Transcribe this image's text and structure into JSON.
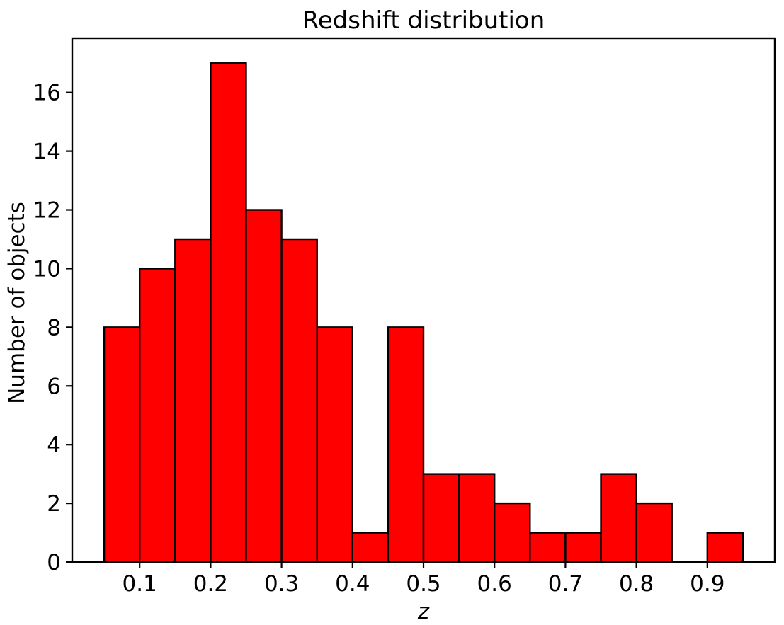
{
  "chart_data": {
    "type": "bar",
    "subtype": "histogram",
    "title": "Redshift distribution",
    "xlabel": "z",
    "ylabel": "Number of objects",
    "bin_start": 0.05,
    "bin_width": 0.05,
    "bin_edges": [
      0.05,
      0.1,
      0.15,
      0.2,
      0.25,
      0.3,
      0.35,
      0.4,
      0.45,
      0.5,
      0.55,
      0.6,
      0.65,
      0.7,
      0.75,
      0.8,
      0.85,
      0.9,
      0.95
    ],
    "counts": [
      8,
      10,
      11,
      17,
      12,
      11,
      8,
      1,
      8,
      3,
      3,
      2,
      1,
      1,
      3,
      2,
      0,
      1
    ],
    "xlim": [
      0.005,
      0.995
    ],
    "ylim": [
      0,
      17.85
    ],
    "x_ticks": [
      0.1,
      0.2,
      0.3,
      0.4,
      0.5,
      0.6,
      0.7,
      0.8,
      0.9
    ],
    "x_tick_labels": [
      "0.1",
      "0.2",
      "0.3",
      "0.4",
      "0.5",
      "0.6",
      "0.7",
      "0.8",
      "0.9"
    ],
    "y_ticks": [
      0,
      2,
      4,
      6,
      8,
      10,
      12,
      14,
      16
    ],
    "y_tick_labels": [
      "0",
      "2",
      "4",
      "6",
      "8",
      "10",
      "12",
      "14",
      "16"
    ],
    "bar_color": "#ff0000",
    "edge_color": "#000000",
    "axis_color": "#000000",
    "background_color": "#ffffff",
    "grid": false
  }
}
